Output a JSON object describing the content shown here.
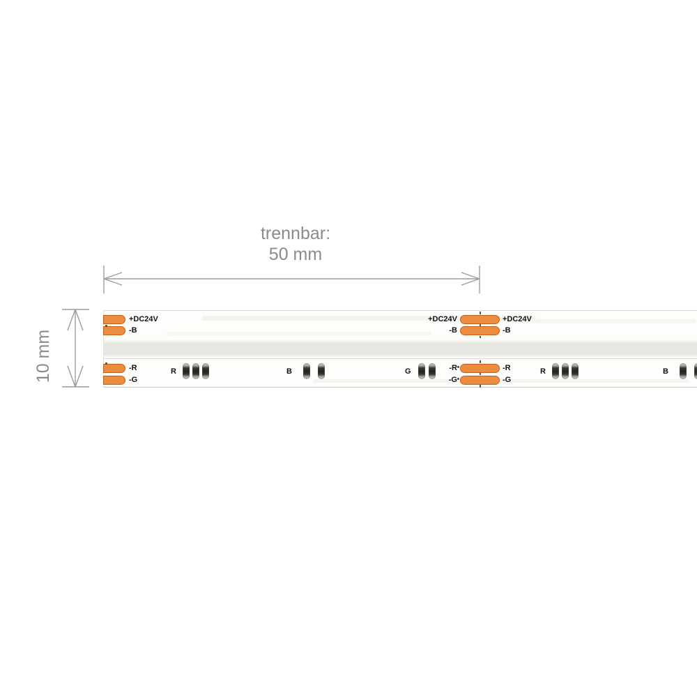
{
  "dimensions": {
    "separable": {
      "line1": "trennbar:",
      "line2": "50 mm"
    },
    "height": {
      "label": "10 mm"
    }
  },
  "strip": {
    "pads": {
      "dc": "+DC24V",
      "b": "-B",
      "r": "-R",
      "g": "-G"
    },
    "chip_groups": [
      {
        "label": "R",
        "chips": 3
      },
      {
        "label": "B",
        "chips": 2
      },
      {
        "label": "G",
        "chips": 2
      },
      {
        "label": "R",
        "chips": 3
      },
      {
        "label": "B",
        "chips": 2
      }
    ],
    "colors": {
      "pad_fill": "#EC8C3E",
      "pad_border": "#BE6120",
      "cob_band": "#E7E5DF",
      "dimension_line": "#9C9C9C",
      "dimension_text": "#8B8B8B",
      "label_text": "#111111",
      "chip_body": "#23231F",
      "chip_cap": "#C6C6BE"
    }
  }
}
